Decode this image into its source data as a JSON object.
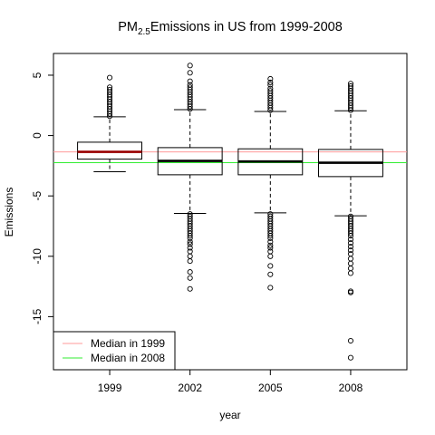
{
  "chart_data": {
    "type": "box",
    "title": {
      "prefix": "PM",
      "subscript": "2.5",
      "suffix": "Emissions in US from 1999-2008"
    },
    "xlabel": "year",
    "ylabel": "Emissions",
    "categories": [
      "1999",
      "2002",
      "2005",
      "2008"
    ],
    "ylim": [
      -19.4,
      6.8
    ],
    "yticks": [
      5,
      0,
      -5,
      -10,
      -15
    ],
    "grid": false,
    "boxes": [
      {
        "category": "1999",
        "whisker_low": -3.0,
        "q1": -1.95,
        "median": -1.35,
        "q3": -0.55,
        "whisker_high": 1.55,
        "outliers_high": [
          1.6,
          1.8,
          2.0,
          2.2,
          2.4,
          2.6,
          2.8,
          3.0,
          3.2,
          3.4,
          3.6,
          3.8,
          4.0,
          4.8
        ],
        "outliers_low": []
      },
      {
        "category": "2002",
        "whisker_low": -6.45,
        "q1": -3.25,
        "median": -2.1,
        "q3": -1.0,
        "whisker_high": 2.15,
        "outliers_high": [
          2.2,
          2.4,
          2.6,
          2.8,
          3.0,
          3.2,
          3.4,
          3.6,
          3.8,
          4.0,
          4.2,
          4.5,
          5.2,
          5.8
        ],
        "outliers_low": [
          -6.5,
          -6.7,
          -6.9,
          -7.1,
          -7.3,
          -7.5,
          -7.7,
          -7.9,
          -8.1,
          -8.3,
          -8.5,
          -8.8,
          -9.0,
          -9.3,
          -9.6,
          -10.0,
          -10.4,
          -11.3,
          -11.8,
          -12.7
        ]
      },
      {
        "category": "2005",
        "whisker_low": -6.4,
        "q1": -3.25,
        "median": -2.15,
        "q3": -1.1,
        "whisker_high": 2.0,
        "outliers_high": [
          2.1,
          2.3,
          2.5,
          2.7,
          2.9,
          3.1,
          3.3,
          3.5,
          3.7,
          3.9,
          4.2,
          4.4,
          4.7
        ],
        "outliers_low": [
          -6.5,
          -6.7,
          -6.9,
          -7.1,
          -7.3,
          -7.5,
          -7.7,
          -7.9,
          -8.1,
          -8.3,
          -8.5,
          -8.8,
          -9.1,
          -9.3,
          -9.6,
          -10.0,
          -10.8,
          -11.5,
          -12.6
        ]
      },
      {
        "category": "2008",
        "whisker_low": -6.65,
        "q1": -3.4,
        "median": -2.25,
        "q3": -1.15,
        "whisker_high": 2.05,
        "outliers_high": [
          2.1,
          2.3,
          2.5,
          2.7,
          2.9,
          3.1,
          3.3,
          3.5,
          3.7,
          3.9,
          4.1,
          4.3
        ],
        "outliers_low": [
          -6.7,
          -6.9,
          -7.1,
          -7.3,
          -7.5,
          -7.7,
          -7.9,
          -8.1,
          -8.3,
          -8.6,
          -8.9,
          -9.2,
          -9.5,
          -9.8,
          -10.2,
          -10.6,
          -11.0,
          -11.4,
          -12.9,
          -13.0,
          -17.0,
          -18.4
        ]
      }
    ],
    "reference_lines": [
      {
        "name": "Median in 1999",
        "value": -1.35,
        "color": "#ff9999"
      },
      {
        "name": "Median in 2008",
        "value": -2.25,
        "color": "#33ee33"
      }
    ],
    "median_colors": [
      "#990000",
      "#000000",
      "#000000",
      "#000000"
    ],
    "legend_placement": "bottom-left"
  }
}
